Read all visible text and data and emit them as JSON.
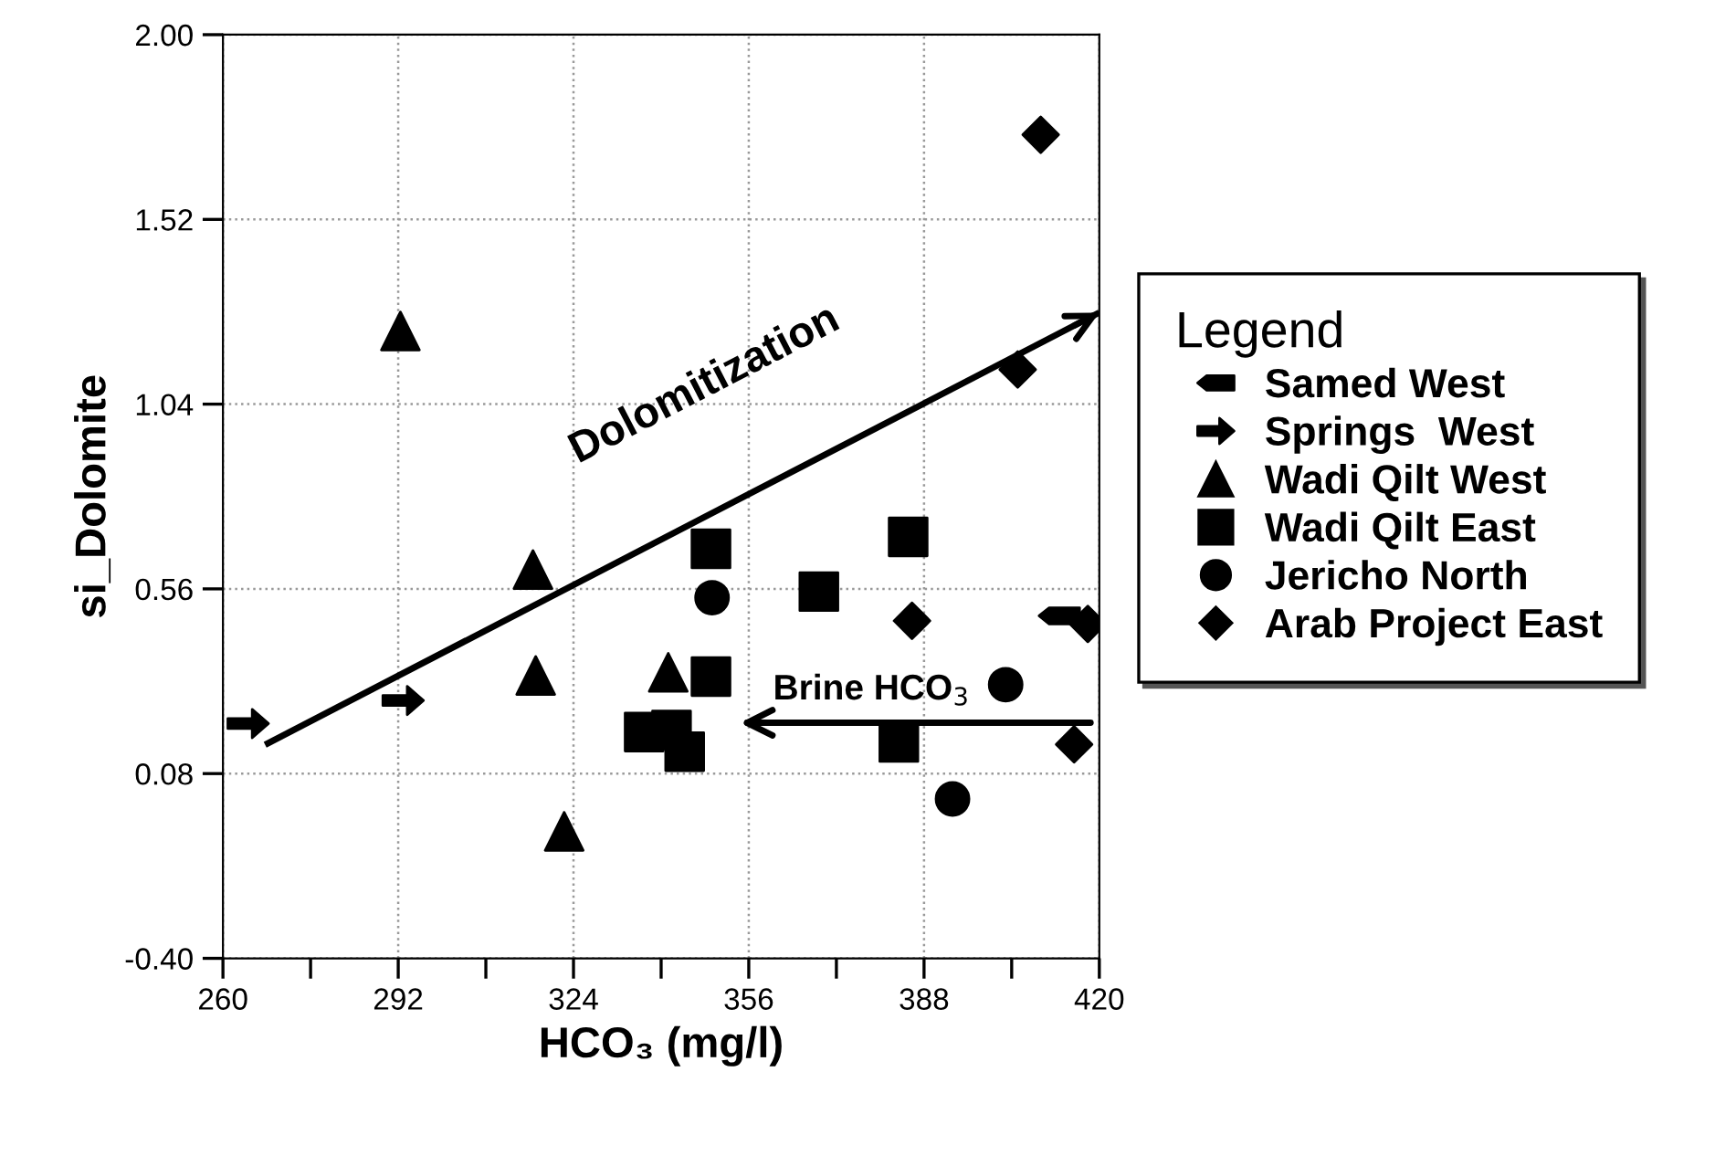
{
  "chart_data": {
    "type": "scatter",
    "xlabel": "HCO₃ (mg/l)",
    "ylabel": "si_Dolomite",
    "legend_title": "Legend",
    "xlim": [
      260,
      420
    ],
    "ylim": [
      -0.4,
      2.0
    ],
    "xticks": [
      260,
      {
        "value": 276,
        "label": null
      },
      292,
      {
        "value": 308,
        "label": null
      },
      324,
      {
        "value": 340,
        "label": null
      },
      356,
      {
        "value": 372,
        "label": null
      },
      388,
      {
        "value": 404,
        "label": null
      },
      420
    ],
    "yticks": [
      {
        "value": -0.4,
        "label": "-0.40"
      },
      {
        "value": 0.08,
        "label": "0.08"
      },
      {
        "value": 0.56,
        "label": "0.56"
      },
      {
        "value": 1.04,
        "label": "1.04"
      },
      {
        "value": 1.52,
        "label": "1.52"
      },
      {
        "value": 2.0,
        "label": "2.00"
      }
    ],
    "grid": true,
    "legend": "right",
    "series": [
      {
        "name": "Samed West",
        "color": "#000000",
        "x": [
          412.7
        ],
        "values": [
          0.49
        ]
      },
      {
        "name": "Springs  West",
        "color": "#000000",
        "x": [
          264.6,
          292.9
        ],
        "values": [
          0.21,
          0.27
        ]
      },
      {
        "name": "Wadi Qilt West",
        "color": "#000000",
        "marker": "triangle",
        "x": [
          292.4,
          316.6,
          317.1,
          341.3,
          322.3
        ],
        "values": [
          1.23,
          0.61,
          0.335,
          0.343,
          -0.07
        ]
      },
      {
        "name": "Wadi Qilt East",
        "color": "#000000",
        "marker": "square",
        "x": [
          349.1,
          385.1,
          368.8,
          349.1,
          336.9,
          341.9,
          344.3,
          383.4
        ],
        "values": [
          0.664,
          0.695,
          0.553,
          0.332,
          0.188,
          0.193,
          0.137,
          0.161
        ]
      },
      {
        "name": "Jericho North",
        "color": "#000000",
        "marker": "circle",
        "x": [
          349.3,
          402.9,
          393.2
        ],
        "values": [
          0.537,
          0.311,
          0.014
        ]
      },
      {
        "name": "Arab Project East",
        "color": "#000000",
        "marker": "diamond",
        "x": [
          409.3,
          405.1,
          385.8,
          417.9,
          415.4
        ],
        "values": [
          1.74,
          1.13,
          0.477,
          0.469,
          0.156
        ]
      },
      {
        "type": "line",
        "color": "#000000",
        "x": [
          267.7,
          420
        ],
        "values": [
          0.155,
          1.278
        ]
      }
    ],
    "annotations": [
      "Dolomitization",
      "Brine HCO$_{3}$"
    ]
  }
}
